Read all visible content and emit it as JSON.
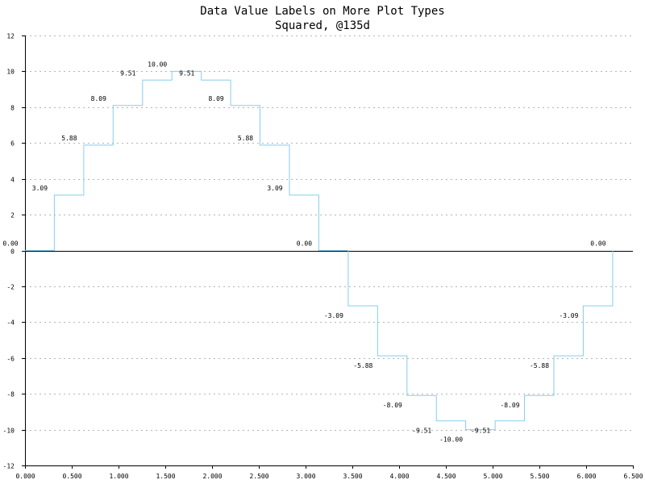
{
  "chart_data": {
    "type": "line",
    "title": "Data Value Labels on More Plot Types",
    "subtitle": "Squared, @135d",
    "xlabel": "",
    "ylabel": "",
    "xlim": [
      0,
      6.5
    ],
    "ylim": [
      -12,
      12
    ],
    "x_ticks": [
      "0.000",
      "0.500",
      "1.000",
      "1.500",
      "2.000",
      "2.500",
      "3.000",
      "3.500",
      "4.000",
      "4.500",
      "5.000",
      "5.500",
      "6.000",
      "6.500"
    ],
    "y_ticks": [
      "12",
      "10",
      "8",
      "6",
      "4",
      "2",
      "0",
      "-2",
      "-4",
      "-6",
      "-8",
      "-10",
      "-12"
    ],
    "grid": "horizontal dashed",
    "step_style": "squared",
    "line_color": "#87ceeb",
    "axis_color": "#000000",
    "series": [
      {
        "x": [
          0.0,
          0.3142,
          0.6283,
          0.9425,
          1.2566,
          1.5708,
          1.885,
          2.1991,
          2.5133,
          2.8274,
          3.1416,
          3.4558,
          3.7699,
          4.0841,
          4.3982,
          4.7124,
          5.0265,
          5.3407,
          5.6549,
          5.969,
          6.2832
        ],
        "values": [
          0.0,
          3.09,
          5.88,
          8.09,
          9.51,
          10.0,
          9.51,
          8.09,
          5.88,
          3.09,
          0.0,
          -3.09,
          -5.88,
          -8.09,
          -9.51,
          -10.0,
          -9.51,
          -8.09,
          -5.88,
          -3.09,
          0.0
        ],
        "labels": [
          "0.00",
          "3.09",
          "5.88",
          "8.09",
          "9.51",
          "10.00",
          "9.51",
          "8.09",
          "5.88",
          "3.09",
          "0.00",
          "-3.09",
          "-5.88",
          "-8.09",
          "-9.51",
          "-10.00",
          "-9.51",
          "-8.09",
          "-5.88",
          "-3.09",
          "0.00"
        ]
      }
    ]
  }
}
